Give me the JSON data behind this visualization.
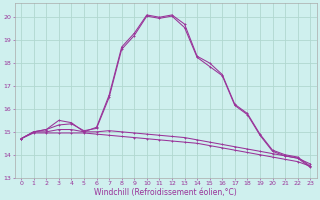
{
  "xlabel": "Windchill (Refroidissement éolien,°C)",
  "background_color": "#cff0ee",
  "grid_color": "#b0d8d0",
  "line_color": "#993399",
  "xlim": [
    -0.5,
    23.5
  ],
  "ylim": [
    13,
    20.6
  ],
  "yticks": [
    13,
    14,
    15,
    16,
    17,
    18,
    19,
    20
  ],
  "xticks": [
    0,
    1,
    2,
    3,
    4,
    5,
    6,
    7,
    8,
    9,
    10,
    11,
    12,
    13,
    14,
    15,
    16,
    17,
    18,
    19,
    20,
    21,
    22,
    23
  ],
  "line1_x": [
    0,
    1,
    2,
    3,
    4,
    5,
    6,
    7,
    8,
    9,
    10,
    11,
    12,
    13,
    14,
    15,
    16,
    17,
    18,
    19,
    20,
    21,
    22,
    23
  ],
  "line1_y": [
    14.7,
    15.0,
    15.1,
    15.5,
    15.4,
    15.0,
    15.2,
    16.6,
    18.7,
    19.3,
    20.1,
    20.0,
    20.1,
    19.7,
    18.3,
    18.0,
    17.5,
    16.2,
    15.8,
    14.9,
    14.2,
    14.0,
    13.9,
    13.5
  ],
  "line2_x": [
    0,
    1,
    2,
    3,
    4,
    5,
    6,
    7,
    8,
    9,
    10,
    11,
    12,
    13,
    14,
    15,
    16,
    17,
    18,
    19,
    20,
    21,
    22,
    23
  ],
  "line2_y": [
    14.7,
    15.0,
    15.1,
    15.3,
    15.35,
    15.05,
    15.15,
    16.5,
    18.6,
    19.2,
    20.05,
    19.95,
    20.05,
    19.55,
    18.25,
    17.85,
    17.45,
    16.15,
    15.75,
    14.85,
    14.15,
    13.95,
    13.85,
    13.45
  ],
  "line3_x": [
    0,
    1,
    2,
    3,
    4,
    5,
    6,
    7,
    8,
    9,
    10,
    11,
    12,
    13,
    14,
    15,
    16,
    17,
    18,
    19,
    20,
    21,
    22,
    23
  ],
  "line3_y": [
    14.7,
    15.0,
    15.0,
    15.1,
    15.1,
    15.0,
    15.0,
    15.05,
    15.0,
    14.95,
    14.9,
    14.85,
    14.8,
    14.75,
    14.65,
    14.55,
    14.45,
    14.35,
    14.25,
    14.15,
    14.05,
    13.95,
    13.85,
    13.6
  ],
  "line4_x": [
    0,
    1,
    2,
    3,
    4,
    5,
    6,
    7,
    8,
    9,
    10,
    11,
    12,
    13,
    14,
    15,
    16,
    17,
    18,
    19,
    20,
    21,
    22,
    23
  ],
  "line4_y": [
    14.7,
    14.95,
    14.95,
    14.95,
    14.95,
    14.95,
    14.9,
    14.85,
    14.8,
    14.75,
    14.7,
    14.65,
    14.6,
    14.55,
    14.5,
    14.4,
    14.3,
    14.2,
    14.1,
    14.0,
    13.9,
    13.8,
    13.7,
    13.5
  ],
  "tick_fontsize": 4.5,
  "xlabel_fontsize": 5.5
}
